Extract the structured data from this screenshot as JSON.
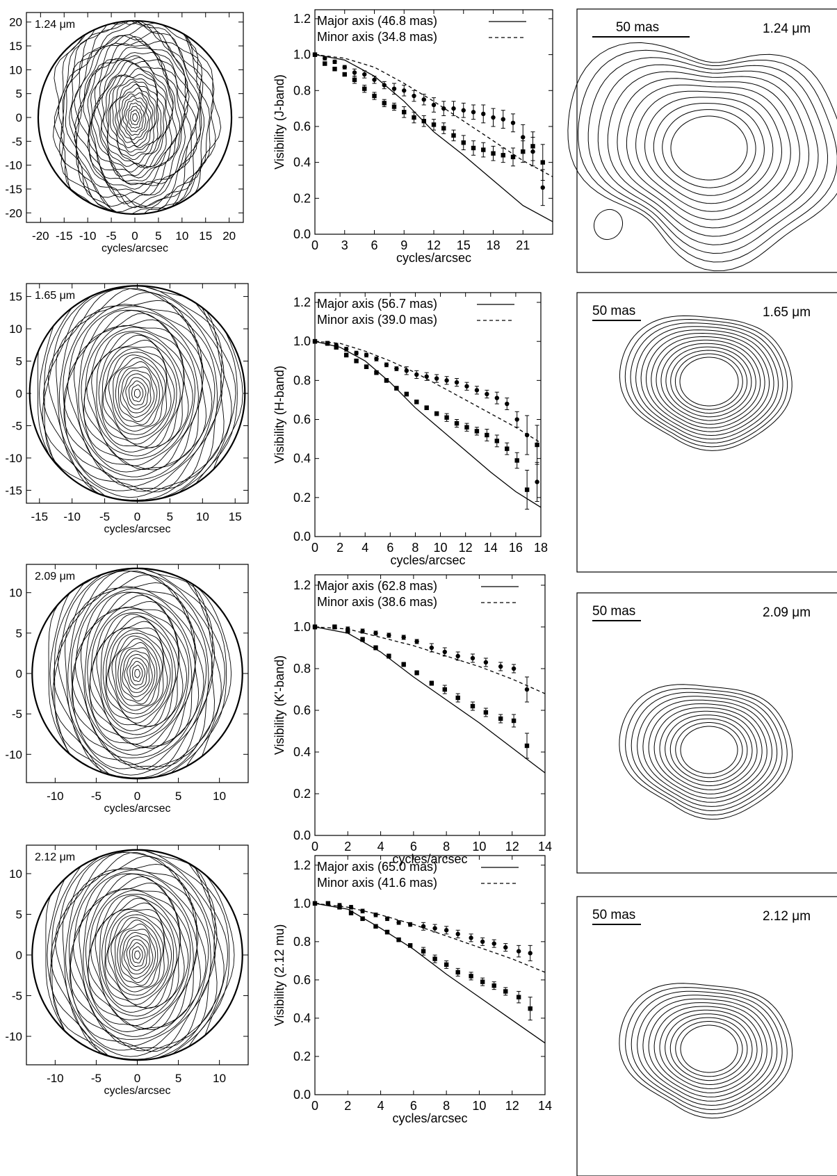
{
  "chart_data": [
    {
      "type": "contour",
      "panel": "row1-col1",
      "label": "1.24 μm",
      "xlabel": "cycles/arcsec",
      "xlim": [
        -23,
        23
      ],
      "ylim": [
        -22,
        22
      ],
      "xticks": [
        "-20",
        "-15",
        "-10",
        "-5",
        "0",
        "5",
        "10",
        "15",
        "20"
      ],
      "yticks": [
        "20",
        "15",
        "10",
        "5",
        "0",
        "-5",
        "-10",
        "-15",
        "-20"
      ],
      "disk_radius": 20.5,
      "ellipse_ratio": 0.6
    },
    {
      "type": "line",
      "panel": "row1-col2",
      "xlabel": "cycles/arcsec",
      "ylabel": "Visibility (J-band)",
      "xlim": [
        0,
        24
      ],
      "ylim": [
        0,
        1.25
      ],
      "xticks": [
        "0",
        "3",
        "6",
        "9",
        "12",
        "15",
        "18",
        "21"
      ],
      "yticks": [
        "0.0",
        "0.2",
        "0.4",
        "0.6",
        "0.8",
        "1.0",
        "1.2"
      ],
      "legend": [
        {
          "label": "Major axis (46.8 mas)",
          "style": "solid"
        },
        {
          "label": "Minor axis (34.8 mas)",
          "style": "dashed"
        }
      ],
      "series": [
        {
          "name": "Major axis (46.8 mas)",
          "style": "solid",
          "x": [
            0,
            3,
            6,
            9,
            12,
            15,
            18,
            21,
            24
          ],
          "y": [
            1.0,
            0.97,
            0.88,
            0.74,
            0.57,
            0.44,
            0.3,
            0.16,
            0.07
          ]
        },
        {
          "name": "Minor axis (34.8 mas)",
          "style": "dashed",
          "x": [
            0,
            3,
            6,
            9,
            12,
            15,
            18,
            21,
            24
          ],
          "y": [
            1.0,
            0.98,
            0.93,
            0.84,
            0.74,
            0.63,
            0.52,
            0.41,
            0.32
          ]
        }
      ],
      "points": [
        {
          "marker": "circle",
          "x": [
            0,
            1,
            2,
            3,
            4,
            5,
            6,
            7,
            8,
            9,
            10,
            11,
            12,
            13,
            14,
            15,
            16,
            17,
            18,
            19,
            20,
            21,
            22,
            23
          ],
          "y": [
            1.0,
            0.98,
            0.96,
            0.93,
            0.9,
            0.89,
            0.86,
            0.83,
            0.81,
            0.8,
            0.77,
            0.75,
            0.72,
            0.7,
            0.7,
            0.69,
            0.68,
            0.67,
            0.65,
            0.64,
            0.62,
            0.54,
            0.46,
            0.26
          ],
          "err": [
            0.01,
            0.01,
            0.01,
            0.01,
            0.02,
            0.02,
            0.02,
            0.02,
            0.03,
            0.03,
            0.03,
            0.03,
            0.04,
            0.04,
            0.04,
            0.04,
            0.04,
            0.05,
            0.05,
            0.05,
            0.05,
            0.07,
            0.08,
            0.1
          ]
        },
        {
          "marker": "square",
          "x": [
            0,
            1,
            2,
            3,
            4,
            5,
            6,
            7,
            8,
            9,
            10,
            11,
            12,
            13,
            14,
            15,
            16,
            17,
            18,
            19,
            20,
            21,
            22,
            23
          ],
          "y": [
            1.0,
            0.95,
            0.92,
            0.89,
            0.86,
            0.81,
            0.77,
            0.73,
            0.71,
            0.68,
            0.65,
            0.63,
            0.61,
            0.59,
            0.55,
            0.51,
            0.48,
            0.47,
            0.45,
            0.44,
            0.43,
            0.46,
            0.49,
            0.4
          ],
          "err": [
            0.01,
            0.01,
            0.01,
            0.01,
            0.02,
            0.02,
            0.02,
            0.02,
            0.02,
            0.03,
            0.03,
            0.03,
            0.03,
            0.03,
            0.03,
            0.04,
            0.04,
            0.04,
            0.04,
            0.04,
            0.05,
            0.06,
            0.08,
            0.1
          ]
        }
      ]
    },
    {
      "type": "contour",
      "panel": "row1-col3",
      "scale_label": "50 mas",
      "label": "1.24 μm"
    },
    {
      "type": "contour",
      "panel": "row2-col1",
      "label": "1.65 μm",
      "xlabel": "cycles/arcsec",
      "xlim": [
        -17,
        17
      ],
      "ylim": [
        -17,
        17
      ],
      "xticks": [
        "-15",
        "-10",
        "-5",
        "0",
        "5",
        "10",
        "15"
      ],
      "yticks": [
        "15",
        "10",
        "5",
        "0",
        "-5",
        "-10",
        "-15"
      ],
      "disk_radius": 16.5,
      "ellipse_ratio": 0.68
    },
    {
      "type": "line",
      "panel": "row2-col2",
      "xlabel": "cycles/arcsec",
      "ylabel": "Visibility (H-band)",
      "xlim": [
        0,
        18
      ],
      "ylim": [
        0,
        1.25
      ],
      "xticks": [
        "0",
        "2",
        "4",
        "6",
        "8",
        "10",
        "12",
        "14",
        "16",
        "18"
      ],
      "yticks": [
        "0.0",
        "0.2",
        "0.4",
        "0.6",
        "0.8",
        "1.0",
        "1.2"
      ],
      "legend": [
        {
          "label": "Major axis (56.7 mas)",
          "style": "solid"
        },
        {
          "label": "Minor axis (39.0 mas)",
          "style": "dashed"
        }
      ],
      "series": [
        {
          "name": "Major axis (56.7 mas)",
          "style": "solid",
          "x": [
            0,
            2,
            4,
            6,
            8,
            10,
            12,
            14,
            16,
            18
          ],
          "y": [
            1.0,
            0.97,
            0.9,
            0.79,
            0.66,
            0.55,
            0.44,
            0.33,
            0.23,
            0.15
          ]
        },
        {
          "name": "Minor axis (39.0 mas)",
          "style": "dashed",
          "x": [
            0,
            2,
            4,
            6,
            8,
            10,
            12,
            14,
            16,
            18
          ],
          "y": [
            1.0,
            0.99,
            0.95,
            0.9,
            0.84,
            0.77,
            0.7,
            0.63,
            0.56,
            0.48
          ]
        }
      ],
      "points": [
        {
          "marker": "circle",
          "x": [
            0,
            1,
            1.7,
            2.5,
            3.3,
            4.1,
            4.9,
            5.7,
            6.5,
            7.3,
            8.1,
            8.9,
            9.7,
            10.5,
            11.3,
            12.1,
            12.9,
            13.7,
            14.5,
            15.3,
            16.1,
            16.9,
            17.7
          ],
          "y": [
            1.0,
            0.99,
            0.98,
            0.96,
            0.94,
            0.93,
            0.91,
            0.88,
            0.86,
            0.85,
            0.83,
            0.82,
            0.81,
            0.8,
            0.79,
            0.77,
            0.75,
            0.73,
            0.71,
            0.68,
            0.6,
            0.52,
            0.28
          ],
          "err": [
            0.01,
            0.01,
            0.01,
            0.01,
            0.01,
            0.01,
            0.01,
            0.01,
            0.01,
            0.02,
            0.02,
            0.02,
            0.02,
            0.02,
            0.02,
            0.02,
            0.02,
            0.02,
            0.03,
            0.03,
            0.04,
            0.1,
            0.1
          ]
        },
        {
          "marker": "square",
          "x": [
            0,
            1,
            1.7,
            2.5,
            3.3,
            4.1,
            4.9,
            5.7,
            6.5,
            7.3,
            8.1,
            8.9,
            9.7,
            10.5,
            11.3,
            12.1,
            12.9,
            13.7,
            14.5,
            15.3,
            16.1,
            16.9,
            17.7
          ],
          "y": [
            1.0,
            0.99,
            0.97,
            0.93,
            0.9,
            0.87,
            0.84,
            0.8,
            0.76,
            0.73,
            0.69,
            0.66,
            0.63,
            0.61,
            0.58,
            0.56,
            0.54,
            0.52,
            0.49,
            0.45,
            0.39,
            0.24,
            0.47
          ],
          "err": [
            0.01,
            0.01,
            0.01,
            0.01,
            0.01,
            0.01,
            0.01,
            0.01,
            0.01,
            0.01,
            0.01,
            0.01,
            0.01,
            0.02,
            0.02,
            0.02,
            0.02,
            0.03,
            0.03,
            0.03,
            0.04,
            0.1,
            0.1
          ]
        }
      ]
    },
    {
      "type": "contour",
      "panel": "row2-col3",
      "scale_label": "50 mas",
      "label": "1.65 μm"
    },
    {
      "type": "contour",
      "panel": "row3-col1",
      "label": "2.09 μm",
      "xlabel": "cycles/arcsec",
      "xlim": [
        -13.5,
        13.5
      ],
      "ylim": [
        -13.5,
        13.5
      ],
      "xticks": [
        "-10",
        "-5",
        "0",
        "5",
        "10"
      ],
      "yticks": [
        "10",
        "5",
        "0",
        "-5",
        "-10"
      ],
      "disk_radius": 12.8,
      "ellipse_ratio": 0.62
    },
    {
      "type": "line",
      "panel": "row3-col2",
      "xlabel": "cycles/arcsec",
      "ylabel": "Visibility (K'-band)",
      "xlim": [
        0,
        14
      ],
      "ylim": [
        0,
        1.25
      ],
      "xticks": [
        "0",
        "2",
        "4",
        "6",
        "8",
        "10",
        "12",
        "14"
      ],
      "yticks": [
        "0.0",
        "0.2",
        "0.4",
        "0.6",
        "0.8",
        "1.0",
        "1.2"
      ],
      "legend": [
        {
          "label": "Major axis (62.8 mas)",
          "style": "solid"
        },
        {
          "label": "Minor axis (38.6 mas)",
          "style": "dashed"
        }
      ],
      "series": [
        {
          "name": "Major axis (62.8 mas)",
          "style": "solid",
          "x": [
            0,
            2,
            4,
            6,
            8,
            10,
            12,
            14
          ],
          "y": [
            1.0,
            0.97,
            0.88,
            0.76,
            0.65,
            0.54,
            0.42,
            0.3
          ]
        },
        {
          "name": "Minor axis (38.6 mas)",
          "style": "dashed",
          "x": [
            0,
            2,
            4,
            6,
            8,
            10,
            12,
            14
          ],
          "y": [
            1.0,
            0.99,
            0.95,
            0.91,
            0.86,
            0.81,
            0.75,
            0.68
          ]
        }
      ],
      "points": [
        {
          "marker": "circle",
          "x": [
            0,
            1.2,
            2.0,
            2.9,
            3.7,
            4.5,
            5.4,
            6.2,
            7.1,
            7.9,
            8.7,
            9.6,
            10.4,
            11.3,
            12.1,
            12.9
          ],
          "y": [
            1.0,
            1.0,
            0.99,
            0.98,
            0.97,
            0.96,
            0.95,
            0.93,
            0.9,
            0.88,
            0.86,
            0.85,
            0.83,
            0.81,
            0.8,
            0.7
          ],
          "err": [
            0.01,
            0.01,
            0.01,
            0.01,
            0.01,
            0.01,
            0.01,
            0.01,
            0.02,
            0.02,
            0.02,
            0.02,
            0.02,
            0.02,
            0.02,
            0.06
          ]
        },
        {
          "marker": "square",
          "x": [
            0,
            1.2,
            2.0,
            2.9,
            3.7,
            4.5,
            5.4,
            6.2,
            7.1,
            7.9,
            8.7,
            9.6,
            10.4,
            11.3,
            12.1,
            12.9
          ],
          "y": [
            1.0,
            1.0,
            0.98,
            0.94,
            0.9,
            0.86,
            0.82,
            0.78,
            0.73,
            0.7,
            0.66,
            0.62,
            0.59,
            0.56,
            0.55,
            0.43
          ],
          "err": [
            0.01,
            0.01,
            0.01,
            0.01,
            0.01,
            0.01,
            0.01,
            0.01,
            0.01,
            0.02,
            0.02,
            0.02,
            0.02,
            0.02,
            0.03,
            0.06
          ]
        }
      ]
    },
    {
      "type": "contour",
      "panel": "row3-col3",
      "scale_label": "50 mas",
      "label": "2.09 μm"
    },
    {
      "type": "contour",
      "panel": "row4-col1",
      "label": "2.12 μm",
      "xlabel": "cycles/arcsec",
      "xlim": [
        -13.5,
        13.5
      ],
      "ylim": [
        -13.5,
        13.5
      ],
      "xticks": [
        "-10",
        "-5",
        "0",
        "5",
        "10"
      ],
      "yticks": [
        "10",
        "5",
        "0",
        "-5",
        "-10"
      ],
      "disk_radius": 12.8,
      "ellipse_ratio": 0.64
    },
    {
      "type": "line",
      "panel": "row4-col2",
      "xlabel": "cycles/arcsec",
      "ylabel": "Visibility (2.12 mu)",
      "xlim": [
        0,
        14
      ],
      "ylim": [
        0,
        1.25
      ],
      "xticks": [
        "0",
        "2",
        "4",
        "6",
        "8",
        "10",
        "12",
        "14"
      ],
      "yticks": [
        "0.0",
        "0.2",
        "0.4",
        "0.6",
        "0.8",
        "1.0",
        "1.2"
      ],
      "legend": [
        {
          "label": "Major axis (65.0 mas)",
          "style": "solid"
        },
        {
          "label": "Minor axis (41.6 mas)",
          "style": "dashed"
        }
      ],
      "series": [
        {
          "name": "Major axis (65.0 mas)",
          "style": "solid",
          "x": [
            0,
            2,
            4,
            6,
            8,
            10,
            12,
            14
          ],
          "y": [
            1.0,
            0.97,
            0.87,
            0.76,
            0.63,
            0.51,
            0.39,
            0.27
          ]
        },
        {
          "name": "Minor axis (41.6 mas)",
          "style": "dashed",
          "x": [
            0,
            2,
            4,
            6,
            8,
            10,
            12,
            14
          ],
          "y": [
            1.0,
            0.98,
            0.94,
            0.89,
            0.83,
            0.77,
            0.71,
            0.64
          ]
        }
      ],
      "points": [
        {
          "marker": "circle",
          "x": [
            0,
            0.8,
            1.5,
            2.2,
            2.9,
            3.7,
            4.4,
            5.1,
            5.8,
            6.6,
            7.3,
            8.0,
            8.7,
            9.5,
            10.2,
            10.9,
            11.6,
            12.4,
            13.1
          ],
          "y": [
            1.0,
            1.0,
            0.99,
            0.98,
            0.96,
            0.94,
            0.92,
            0.9,
            0.89,
            0.88,
            0.87,
            0.86,
            0.84,
            0.82,
            0.8,
            0.79,
            0.77,
            0.75,
            0.74
          ],
          "err": [
            0.01,
            0.01,
            0.01,
            0.01,
            0.01,
            0.01,
            0.01,
            0.01,
            0.01,
            0.02,
            0.02,
            0.02,
            0.02,
            0.02,
            0.02,
            0.02,
            0.02,
            0.03,
            0.04
          ]
        },
        {
          "marker": "square",
          "x": [
            0,
            0.8,
            1.5,
            2.2,
            2.9,
            3.7,
            4.4,
            5.1,
            5.8,
            6.6,
            7.3,
            8.0,
            8.7,
            9.5,
            10.2,
            10.9,
            11.6,
            12.4,
            13.1
          ],
          "y": [
            1.0,
            1.0,
            0.98,
            0.95,
            0.92,
            0.88,
            0.85,
            0.81,
            0.78,
            0.75,
            0.71,
            0.68,
            0.64,
            0.62,
            0.59,
            0.57,
            0.54,
            0.51,
            0.45
          ],
          "err": [
            0.01,
            0.01,
            0.01,
            0.01,
            0.01,
            0.01,
            0.01,
            0.01,
            0.01,
            0.02,
            0.02,
            0.02,
            0.02,
            0.02,
            0.02,
            0.02,
            0.02,
            0.03,
            0.06
          ]
        }
      ]
    },
    {
      "type": "contour",
      "panel": "row4-col3",
      "scale_label": "50 mas",
      "label": "2.12 μm"
    }
  ]
}
